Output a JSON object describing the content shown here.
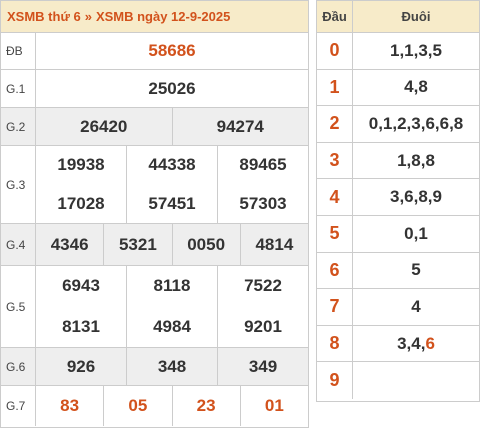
{
  "header": {
    "link1": "XSMB thứ 6",
    "separator": "»",
    "link2": "XSMB ngày 12-9-2025"
  },
  "results": {
    "db": {
      "label": "ĐB",
      "values": [
        "58686"
      ]
    },
    "g1": {
      "label": "G.1",
      "values": [
        "25026"
      ]
    },
    "g2": {
      "label": "G.2",
      "values": [
        "26420",
        "94274"
      ]
    },
    "g3": {
      "label": "G.3",
      "values": [
        "19938",
        "44338",
        "89465",
        "17028",
        "57451",
        "57303"
      ]
    },
    "g4": {
      "label": "G.4",
      "values": [
        "4346",
        "5321",
        "0050",
        "4814"
      ]
    },
    "g5": {
      "label": "G.5",
      "values": [
        "6943",
        "8118",
        "7522",
        "8131",
        "4984",
        "9201"
      ]
    },
    "g6": {
      "label": "G.6",
      "values": [
        "926",
        "348",
        "349"
      ]
    },
    "g7": {
      "label": "G.7",
      "values": [
        "83",
        "05",
        "23",
        "01"
      ]
    }
  },
  "loto": {
    "header_dau": "Đầu",
    "header_duoi": "Đuôi",
    "rows": [
      {
        "dau": "0",
        "duoi": "1,1,3,5",
        "highlight": ""
      },
      {
        "dau": "1",
        "duoi": "4,8",
        "highlight": ""
      },
      {
        "dau": "2",
        "duoi": "0,1,2,3,6,6,8",
        "highlight": ""
      },
      {
        "dau": "3",
        "duoi": "1,8,8",
        "highlight": ""
      },
      {
        "dau": "4",
        "duoi": "3,6,8,9",
        "highlight": ""
      },
      {
        "dau": "5",
        "duoi": "0,1",
        "highlight": ""
      },
      {
        "dau": "6",
        "duoi": "5",
        "highlight": ""
      },
      {
        "dau": "7",
        "duoi": "4",
        "highlight": ""
      },
      {
        "dau": "8",
        "duoi": "3,4,",
        "highlight": "6"
      },
      {
        "dau": "9",
        "duoi": "",
        "highlight": ""
      }
    ]
  },
  "colors": {
    "accent": "#d2521c",
    "header_bg": "#f7ebc9",
    "alt_row_bg": "#eeeeee"
  }
}
